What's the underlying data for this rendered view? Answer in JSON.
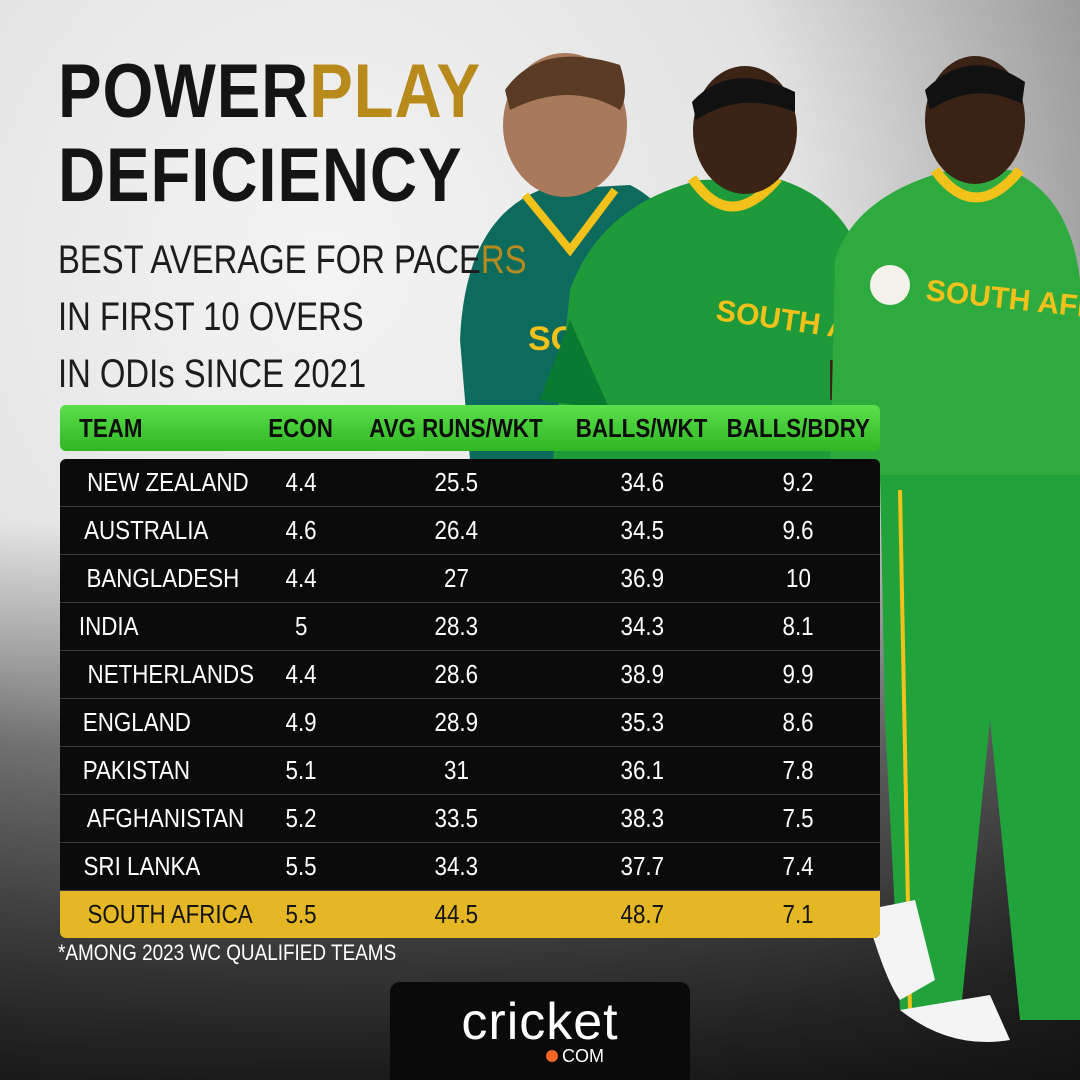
{
  "title": {
    "line1_dark": "POWER",
    "line1_gold": "PLAY",
    "line2": "DEFICIENCY"
  },
  "subtitle": {
    "line1_dark": "BEST AVERAGE FOR PACE",
    "line1_gold": "RS",
    "line2": "IN FIRST 10 OVERS",
    "line3": "IN ODIs SINCE 2021"
  },
  "table": {
    "headers": [
      "TEAM",
      "ECON",
      "AVG RUNS/WKT",
      "BALLS/WKT",
      "BALLS/BDRY"
    ],
    "rows": [
      [
        "NEW ZEALAND",
        "4.4",
        "25.5",
        "34.6",
        "9.2"
      ],
      [
        "AUSTRALIA",
        "4.6",
        "26.4",
        "34.5",
        "9.6"
      ],
      [
        "BANGLADESH",
        "4.4",
        "27",
        "36.9",
        "10"
      ],
      [
        "INDIA",
        "5",
        "28.3",
        "34.3",
        "8.1"
      ],
      [
        "NETHERLANDS",
        "4.4",
        "28.6",
        "38.9",
        "9.9"
      ],
      [
        "ENGLAND",
        "4.9",
        "28.9",
        "35.3",
        "8.6"
      ],
      [
        "PAKISTAN",
        "5.1",
        "31",
        "36.1",
        "7.8"
      ],
      [
        "AFGHANISTAN",
        "5.2",
        "33.5",
        "38.3",
        "7.5"
      ],
      [
        "SRI LANKA",
        "5.5",
        "34.3",
        "37.7",
        "7.4"
      ],
      [
        "SOUTH AFRICA",
        "5.5",
        "44.5",
        "48.7",
        "7.1"
      ]
    ]
  },
  "footnote": "*AMONG 2023 WC QUALIFIED TEAMS",
  "logo": {
    "word": "cricket",
    "com": "COM"
  },
  "players": {
    "jersey_text_1": "SOUTH AFRICA",
    "jersey_text_2": "SOUTH AFRICA",
    "jersey_text_3": "SO"
  },
  "colors": {
    "header_green": "#3ccb2c",
    "highlight_gold": "#e5b724",
    "title_gold": "#b88a1c",
    "jersey_green": "#1f9a3a",
    "jersey_yellow": "#f2c21b"
  }
}
